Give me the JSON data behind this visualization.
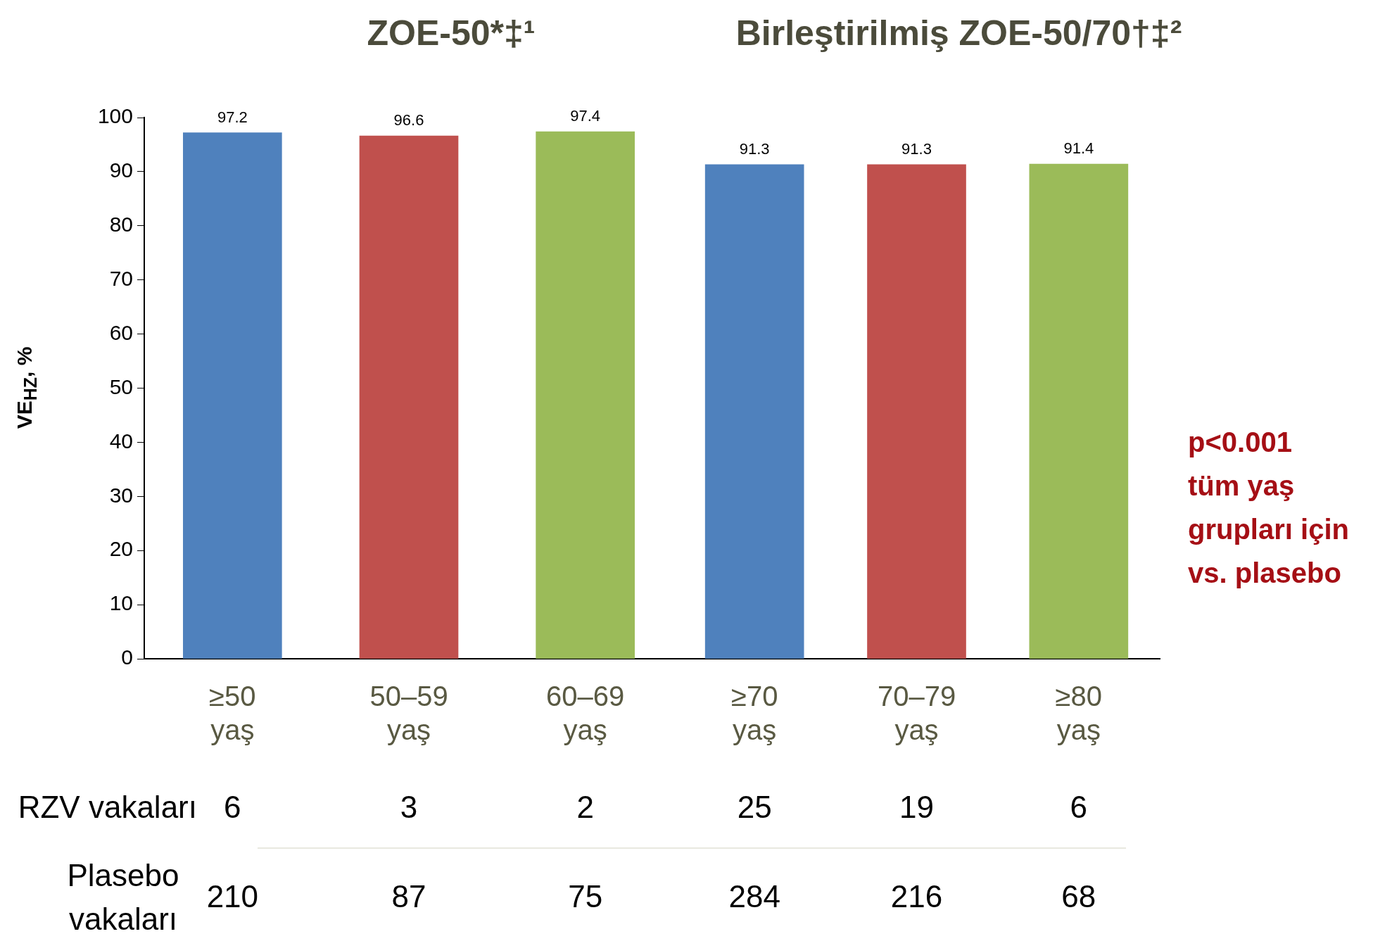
{
  "chart_data": [
    {
      "type": "bar",
      "title": "ZOE-50*‡¹",
      "ylabel": "VE$_{HZ}$, %",
      "categories": [
        "≥50 yaş",
        "50–59 yaş",
        "60–69 yaş"
      ],
      "values": [
        97.2,
        96.6,
        97.4
      ],
      "colors": [
        "#4f81bd",
        "#c0504d",
        "#9bbb59"
      ],
      "ylim": [
        0,
        100
      ],
      "yticks": [
        0,
        10,
        20,
        30,
        40,
        50,
        60,
        70,
        80,
        90,
        100
      ],
      "grid": false,
      "legend": false,
      "data_labels": true,
      "annotations": [
        "RZV vakaları",
        "Plasebo vakaları",
        "6",
        "3",
        "2",
        "210",
        "87",
        "75"
      ]
    },
    {
      "type": "bar",
      "title": "Birleştirilmiş ZOE-50/70†‡²",
      "categories": [
        "≥70 yaş",
        "70–79 yaş",
        "≥80 yaş"
      ],
      "values": [
        91.3,
        91.3,
        91.4
      ],
      "colors": [
        "#4f81bd",
        "#c0504d",
        "#9bbb59"
      ],
      "ylim": [
        0,
        100
      ],
      "yticks": [
        0,
        10,
        20,
        30,
        40,
        50,
        60,
        70,
        80,
        90,
        100
      ],
      "tick_labels": "x",
      "grid": false,
      "legend": false,
      "data_labels": true,
      "annotations": [
        "p<0.001\ntüm yaş\ngrupları için\nvs. plasebo",
        "25",
        "19",
        "6",
        "284",
        "216",
        "68"
      ]
    }
  ]
}
